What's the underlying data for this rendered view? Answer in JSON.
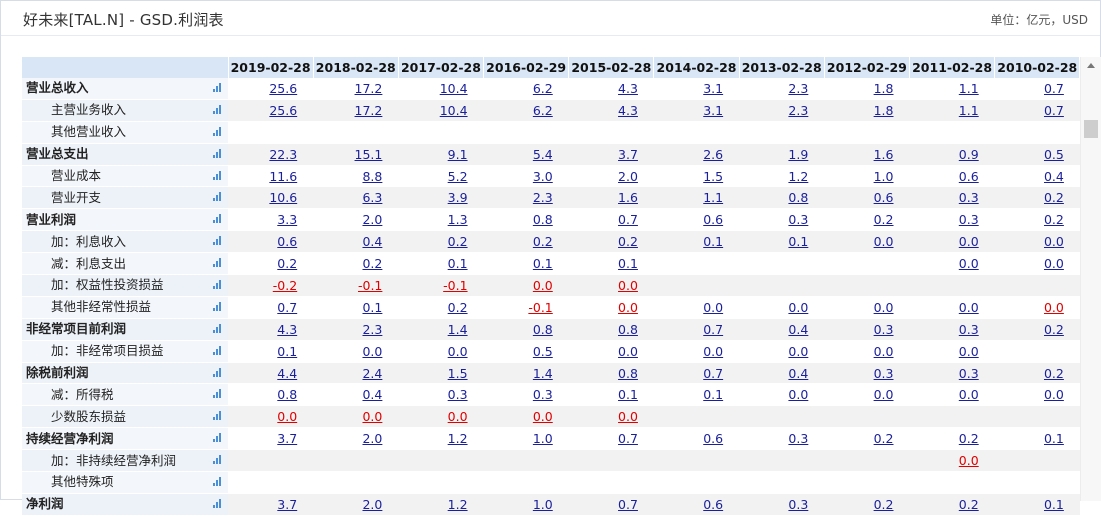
{
  "header": {
    "title": "好未来[TAL.N] - GSD.利润表",
    "unit": "单位：亿元，USD"
  },
  "years": [
    "2019-02-28",
    "2018-02-28",
    "2017-02-28",
    "2016-02-29",
    "2015-02-28",
    "2014-02-28",
    "2013-02-28",
    "2012-02-29",
    "2011-02-28",
    "2010-02-28"
  ],
  "rows": [
    {
      "label": "营业总收入",
      "bold": true,
      "sub": false,
      "values": [
        "25.6",
        "17.2",
        "10.4",
        "6.2",
        "4.3",
        "3.1",
        "2.3",
        "1.8",
        "1.1",
        "0.7"
      ]
    },
    {
      "label": "主营业务收入",
      "bold": false,
      "sub": true,
      "values": [
        "25.6",
        "17.2",
        "10.4",
        "6.2",
        "4.3",
        "3.1",
        "2.3",
        "1.8",
        "1.1",
        "0.7"
      ]
    },
    {
      "label": "其他营业收入",
      "bold": false,
      "sub": true,
      "values": [
        "",
        "",
        "",
        "",
        "",
        "",
        "",
        "",
        "",
        ""
      ]
    },
    {
      "label": "营业总支出",
      "bold": true,
      "sub": false,
      "values": [
        "22.3",
        "15.1",
        "9.1",
        "5.4",
        "3.7",
        "2.6",
        "1.9",
        "1.6",
        "0.9",
        "0.5"
      ]
    },
    {
      "label": "营业成本",
      "bold": false,
      "sub": true,
      "values": [
        "11.6",
        "8.8",
        "5.2",
        "3.0",
        "2.0",
        "1.5",
        "1.2",
        "1.0",
        "0.6",
        "0.4"
      ]
    },
    {
      "label": "营业开支",
      "bold": false,
      "sub": true,
      "values": [
        "10.6",
        "6.3",
        "3.9",
        "2.3",
        "1.6",
        "1.1",
        "0.8",
        "0.6",
        "0.3",
        "0.2"
      ]
    },
    {
      "label": "营业利润",
      "bold": true,
      "sub": false,
      "values": [
        "3.3",
        "2.0",
        "1.3",
        "0.8",
        "0.7",
        "0.6",
        "0.3",
        "0.2",
        "0.3",
        "0.2"
      ]
    },
    {
      "label": "加：利息收入",
      "bold": false,
      "sub": true,
      "values": [
        "0.6",
        "0.4",
        "0.2",
        "0.2",
        "0.2",
        "0.1",
        "0.1",
        "0.0",
        "0.0",
        "0.0"
      ]
    },
    {
      "label": "减：利息支出",
      "bold": false,
      "sub": true,
      "values": [
        "0.2",
        "0.2",
        "0.1",
        "0.1",
        "0.1",
        "",
        "",
        "",
        "0.0",
        "0.0"
      ]
    },
    {
      "label": "加：权益性投资损益",
      "bold": false,
      "sub": true,
      "values": [
        "-0.2",
        "-0.1",
        "-0.1",
        "0.0",
        "0.0",
        "",
        "",
        "",
        "",
        ""
      ]
    },
    {
      "label": "其他非经常性损益",
      "bold": false,
      "sub": true,
      "values": [
        "0.7",
        "0.1",
        "0.2",
        "-0.1",
        "0.0",
        "0.0",
        "0.0",
        "0.0",
        "0.0",
        "0.0"
      ]
    },
    {
      "label": "非经常项目前利润",
      "bold": true,
      "sub": false,
      "values": [
        "4.3",
        "2.3",
        "1.4",
        "0.8",
        "0.8",
        "0.7",
        "0.4",
        "0.3",
        "0.3",
        "0.2"
      ]
    },
    {
      "label": "加：非经常项目损益",
      "bold": false,
      "sub": true,
      "values": [
        "0.1",
        "0.0",
        "0.0",
        "0.5",
        "0.0",
        "0.0",
        "0.0",
        "0.0",
        "0.0",
        ""
      ]
    },
    {
      "label": "除税前利润",
      "bold": true,
      "sub": false,
      "values": [
        "4.4",
        "2.4",
        "1.5",
        "1.4",
        "0.8",
        "0.7",
        "0.4",
        "0.3",
        "0.3",
        "0.2"
      ]
    },
    {
      "label": "减：所得税",
      "bold": false,
      "sub": true,
      "values": [
        "0.8",
        "0.4",
        "0.3",
        "0.3",
        "0.1",
        "0.1",
        "0.0",
        "0.0",
        "0.0",
        "0.0"
      ]
    },
    {
      "label": "少数股东损益",
      "bold": false,
      "sub": true,
      "values": [
        "0.0",
        "0.0",
        "0.0",
        "0.0",
        "0.0",
        "",
        "",
        "",
        "",
        ""
      ]
    },
    {
      "label": "持续经营净利润",
      "bold": true,
      "sub": false,
      "values": [
        "3.7",
        "2.0",
        "1.2",
        "1.0",
        "0.7",
        "0.6",
        "0.3",
        "0.2",
        "0.2",
        "0.1"
      ]
    },
    {
      "label": "加：非持续经营净利润",
      "bold": false,
      "sub": true,
      "values": [
        "",
        "",
        "",
        "",
        "",
        "",
        "",
        "",
        "0.0",
        ""
      ]
    },
    {
      "label": "其他特殊项",
      "bold": false,
      "sub": true,
      "values": [
        "",
        "",
        "",
        "",
        "",
        "",
        "",
        "",
        "",
        ""
      ]
    },
    {
      "label": "净利润",
      "bold": true,
      "sub": false,
      "values": [
        "3.7",
        "2.0",
        "1.2",
        "1.0",
        "0.7",
        "0.6",
        "0.3",
        "0.2",
        "0.2",
        "0.1"
      ]
    }
  ],
  "red_cells": [
    [
      9,
      0
    ],
    [
      9,
      1
    ],
    [
      9,
      2
    ],
    [
      9,
      3
    ],
    [
      9,
      4
    ],
    [
      10,
      3
    ],
    [
      10,
      4
    ],
    [
      10,
      9
    ],
    [
      15,
      0
    ],
    [
      15,
      1
    ],
    [
      15,
      2
    ],
    [
      15,
      3
    ],
    [
      15,
      4
    ],
    [
      17,
      8
    ]
  ],
  "colors": {
    "link": "#1a1f9c",
    "negative": "#e00000",
    "header_bg": "#d9e6f5",
    "label_bg": "#f3f6fa",
    "chart_icon": "#4a8fd6"
  }
}
